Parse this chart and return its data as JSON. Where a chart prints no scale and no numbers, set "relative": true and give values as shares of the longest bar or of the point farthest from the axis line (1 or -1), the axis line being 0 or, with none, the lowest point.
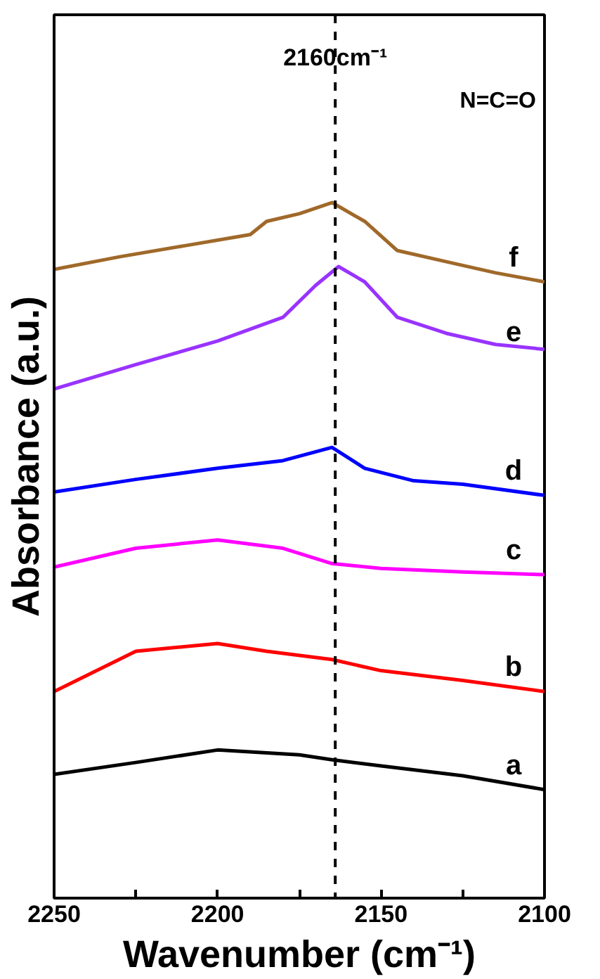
{
  "chart_data": {
    "type": "line",
    "xlabel": "Wavenumber (cm⁻¹)",
    "ylabel": "Absorbance (a.u.)",
    "relative": true,
    "xlim": [
      2250,
      2100
    ],
    "xticks": [
      2250,
      {
        "value": 2225,
        "label": null
      },
      2200,
      {
        "value": 2175,
        "label": null
      },
      2150,
      {
        "value": 2125,
        "label": null
      },
      2100
    ],
    "grid": false,
    "tick_labels": "x",
    "marker": "none",
    "line_style": "solid",
    "ref_lines": [
      {
        "axis": "x",
        "value": 2164,
        "label": "2160cm⁻¹",
        "line_style": "dashed",
        "color": "#000000"
      }
    ],
    "annotations": [
      "N=C=O"
    ],
    "series": [
      {
        "name": "a",
        "color": "#000000",
        "x": [
          2250,
          2225,
          2200,
          2175,
          2165,
          2150,
          2125,
          2100
        ],
        "values": [
          0.178,
          0.195,
          0.213,
          0.206,
          0.199,
          0.19,
          0.176,
          0.156
        ]
      },
      {
        "name": "b",
        "color": "#ff0000",
        "x": [
          2250,
          2225,
          2200,
          2185,
          2165,
          2150,
          2125,
          2100
        ],
        "values": [
          0.297,
          0.355,
          0.366,
          0.355,
          0.343,
          0.327,
          0.313,
          0.297
        ]
      },
      {
        "name": "c",
        "color": "#ff00ff",
        "x": [
          2250,
          2225,
          2200,
          2180,
          2165,
          2150,
          2125,
          2100
        ],
        "values": [
          0.476,
          0.503,
          0.515,
          0.503,
          0.481,
          0.474,
          0.469,
          0.465
        ]
      },
      {
        "name": "d",
        "color": "#0000ff",
        "x": [
          2250,
          2225,
          2200,
          2180,
          2165,
          2155,
          2140,
          2125,
          2100
        ],
        "values": [
          0.584,
          0.602,
          0.618,
          0.629,
          0.648,
          0.618,
          0.6,
          0.595,
          0.579
        ]
      },
      {
        "name": "e",
        "color": "#9933ff",
        "x": [
          2250,
          2225,
          2200,
          2180,
          2170,
          2163,
          2155,
          2145,
          2130,
          2115,
          2100
        ],
        "values": [
          0.732,
          0.767,
          0.801,
          0.835,
          0.881,
          0.908,
          0.886,
          0.835,
          0.812,
          0.796,
          0.789
        ]
      },
      {
        "name": "f",
        "color": "#a0692a",
        "x": [
          2250,
          2230,
          2210,
          2195,
          2190,
          2185,
          2175,
          2165,
          2155,
          2145,
          2130,
          2115,
          2100
        ],
        "values": [
          0.904,
          0.922,
          0.938,
          0.95,
          0.954,
          0.973,
          0.984,
          1.0,
          0.973,
          0.931,
          0.915,
          0.899,
          0.886
        ]
      }
    ]
  }
}
